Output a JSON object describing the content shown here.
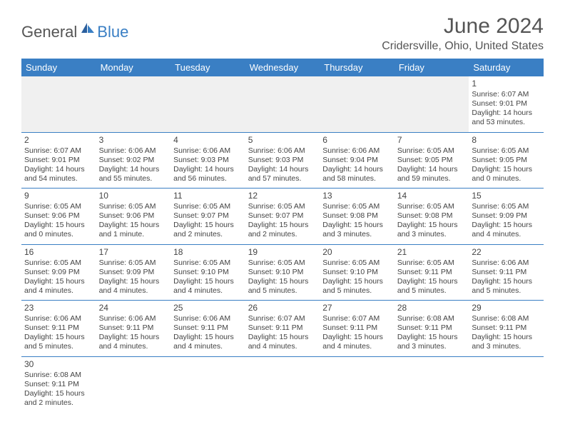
{
  "brand": {
    "general": "General",
    "blue": "Blue"
  },
  "title": "June 2024",
  "location": "Cridersville, Ohio, United States",
  "colors": {
    "header_bg": "#3a7fc4",
    "header_text": "#ffffff",
    "border": "#3a7fc4",
    "text": "#444444"
  },
  "day_headers": [
    "Sunday",
    "Monday",
    "Tuesday",
    "Wednesday",
    "Thursday",
    "Friday",
    "Saturday"
  ],
  "weeks": [
    [
      null,
      null,
      null,
      null,
      null,
      null,
      {
        "n": "1",
        "sr": "Sunrise: 6:07 AM",
        "ss": "Sunset: 9:01 PM",
        "dl": "Daylight: 14 hours and 53 minutes."
      }
    ],
    [
      {
        "n": "2",
        "sr": "Sunrise: 6:07 AM",
        "ss": "Sunset: 9:01 PM",
        "dl": "Daylight: 14 hours and 54 minutes."
      },
      {
        "n": "3",
        "sr": "Sunrise: 6:06 AM",
        "ss": "Sunset: 9:02 PM",
        "dl": "Daylight: 14 hours and 55 minutes."
      },
      {
        "n": "4",
        "sr": "Sunrise: 6:06 AM",
        "ss": "Sunset: 9:03 PM",
        "dl": "Daylight: 14 hours and 56 minutes."
      },
      {
        "n": "5",
        "sr": "Sunrise: 6:06 AM",
        "ss": "Sunset: 9:03 PM",
        "dl": "Daylight: 14 hours and 57 minutes."
      },
      {
        "n": "6",
        "sr": "Sunrise: 6:06 AM",
        "ss": "Sunset: 9:04 PM",
        "dl": "Daylight: 14 hours and 58 minutes."
      },
      {
        "n": "7",
        "sr": "Sunrise: 6:05 AM",
        "ss": "Sunset: 9:05 PM",
        "dl": "Daylight: 14 hours and 59 minutes."
      },
      {
        "n": "8",
        "sr": "Sunrise: 6:05 AM",
        "ss": "Sunset: 9:05 PM",
        "dl": "Daylight: 15 hours and 0 minutes."
      }
    ],
    [
      {
        "n": "9",
        "sr": "Sunrise: 6:05 AM",
        "ss": "Sunset: 9:06 PM",
        "dl": "Daylight: 15 hours and 0 minutes."
      },
      {
        "n": "10",
        "sr": "Sunrise: 6:05 AM",
        "ss": "Sunset: 9:06 PM",
        "dl": "Daylight: 15 hours and 1 minute."
      },
      {
        "n": "11",
        "sr": "Sunrise: 6:05 AM",
        "ss": "Sunset: 9:07 PM",
        "dl": "Daylight: 15 hours and 2 minutes."
      },
      {
        "n": "12",
        "sr": "Sunrise: 6:05 AM",
        "ss": "Sunset: 9:07 PM",
        "dl": "Daylight: 15 hours and 2 minutes."
      },
      {
        "n": "13",
        "sr": "Sunrise: 6:05 AM",
        "ss": "Sunset: 9:08 PM",
        "dl": "Daylight: 15 hours and 3 minutes."
      },
      {
        "n": "14",
        "sr": "Sunrise: 6:05 AM",
        "ss": "Sunset: 9:08 PM",
        "dl": "Daylight: 15 hours and 3 minutes."
      },
      {
        "n": "15",
        "sr": "Sunrise: 6:05 AM",
        "ss": "Sunset: 9:09 PM",
        "dl": "Daylight: 15 hours and 4 minutes."
      }
    ],
    [
      {
        "n": "16",
        "sr": "Sunrise: 6:05 AM",
        "ss": "Sunset: 9:09 PM",
        "dl": "Daylight: 15 hours and 4 minutes."
      },
      {
        "n": "17",
        "sr": "Sunrise: 6:05 AM",
        "ss": "Sunset: 9:09 PM",
        "dl": "Daylight: 15 hours and 4 minutes."
      },
      {
        "n": "18",
        "sr": "Sunrise: 6:05 AM",
        "ss": "Sunset: 9:10 PM",
        "dl": "Daylight: 15 hours and 4 minutes."
      },
      {
        "n": "19",
        "sr": "Sunrise: 6:05 AM",
        "ss": "Sunset: 9:10 PM",
        "dl": "Daylight: 15 hours and 5 minutes."
      },
      {
        "n": "20",
        "sr": "Sunrise: 6:05 AM",
        "ss": "Sunset: 9:10 PM",
        "dl": "Daylight: 15 hours and 5 minutes."
      },
      {
        "n": "21",
        "sr": "Sunrise: 6:05 AM",
        "ss": "Sunset: 9:11 PM",
        "dl": "Daylight: 15 hours and 5 minutes."
      },
      {
        "n": "22",
        "sr": "Sunrise: 6:06 AM",
        "ss": "Sunset: 9:11 PM",
        "dl": "Daylight: 15 hours and 5 minutes."
      }
    ],
    [
      {
        "n": "23",
        "sr": "Sunrise: 6:06 AM",
        "ss": "Sunset: 9:11 PM",
        "dl": "Daylight: 15 hours and 5 minutes."
      },
      {
        "n": "24",
        "sr": "Sunrise: 6:06 AM",
        "ss": "Sunset: 9:11 PM",
        "dl": "Daylight: 15 hours and 4 minutes."
      },
      {
        "n": "25",
        "sr": "Sunrise: 6:06 AM",
        "ss": "Sunset: 9:11 PM",
        "dl": "Daylight: 15 hours and 4 minutes."
      },
      {
        "n": "26",
        "sr": "Sunrise: 6:07 AM",
        "ss": "Sunset: 9:11 PM",
        "dl": "Daylight: 15 hours and 4 minutes."
      },
      {
        "n": "27",
        "sr": "Sunrise: 6:07 AM",
        "ss": "Sunset: 9:11 PM",
        "dl": "Daylight: 15 hours and 4 minutes."
      },
      {
        "n": "28",
        "sr": "Sunrise: 6:08 AM",
        "ss": "Sunset: 9:11 PM",
        "dl": "Daylight: 15 hours and 3 minutes."
      },
      {
        "n": "29",
        "sr": "Sunrise: 6:08 AM",
        "ss": "Sunset: 9:11 PM",
        "dl": "Daylight: 15 hours and 3 minutes."
      }
    ],
    [
      {
        "n": "30",
        "sr": "Sunrise: 6:08 AM",
        "ss": "Sunset: 9:11 PM",
        "dl": "Daylight: 15 hours and 2 minutes."
      },
      null,
      null,
      null,
      null,
      null,
      null
    ]
  ]
}
